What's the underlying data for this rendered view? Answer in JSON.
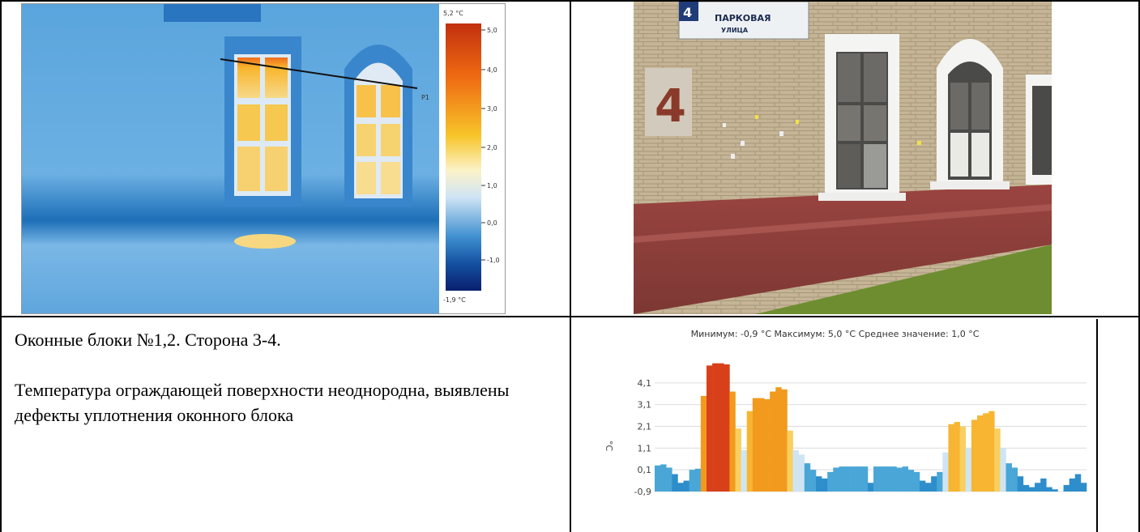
{
  "thermogram": {
    "scale_max": "5,2 °C",
    "scale_min": "-1,9 °C",
    "scale_ticks": [
      "5,0",
      "4,0",
      "3,0",
      "2,0",
      "1,0",
      "0,0",
      "-1,0"
    ],
    "profile_label": "P1"
  },
  "photo": {
    "house_number": "4",
    "sign_number": "4",
    "street_sign_line1": "ПАРКОВАЯ",
    "street_sign_line2": "УЛИЦА"
  },
  "description": {
    "title": "Оконные блоки №1,2. Сторона 3-4.",
    "body": "Температура ограждающей поверхности неоднородна, выявлены дефекты уплотнения оконного блока"
  },
  "chart_data": {
    "type": "bar",
    "title": "Минимум: -0,9 °C Максимум: 5,0 °C Среднее значение: 1,0 °C",
    "ylabel": "°C",
    "yticks": [
      "4,1",
      "3,1",
      "2,1",
      "1,1",
      "0,1",
      "-0,9"
    ],
    "ylim": [
      -0.9,
      5.1
    ],
    "values": [
      0.3,
      0.35,
      0.2,
      -0.1,
      -0.5,
      -0.4,
      0.1,
      0.15,
      3.5,
      4.9,
      5.0,
      5.0,
      4.95,
      3.7,
      2.0,
      1.0,
      2.8,
      3.4,
      3.4,
      3.35,
      3.7,
      3.9,
      3.8,
      1.9,
      1.0,
      0.8,
      0.4,
      0.1,
      -0.2,
      -0.3,
      0.0,
      0.2,
      0.25,
      0.25,
      0.25,
      0.25,
      0.25,
      -0.5,
      0.25,
      0.25,
      0.25,
      0.25,
      0.2,
      0.25,
      0.1,
      0.0,
      -0.4,
      -0.5,
      -0.2,
      0.0,
      0.9,
      2.2,
      2.3,
      2.1,
      1.1,
      2.4,
      2.6,
      2.7,
      2.8,
      2.0,
      1.1,
      0.4,
      0.2,
      -0.2,
      -0.6,
      -0.7,
      -0.5,
      -0.3,
      -0.7,
      -0.8,
      -0.9,
      -0.6,
      -0.3,
      -0.1,
      -0.5
    ]
  },
  "colors": {
    "thermal_bg": "#4a9ad8",
    "hot": "#e0451a",
    "warm": "#f5a623",
    "cool": "#2f8fd0",
    "brick": "#c8b79a",
    "plinth": "#8e3d3a",
    "grass": "#6f8f2f"
  }
}
